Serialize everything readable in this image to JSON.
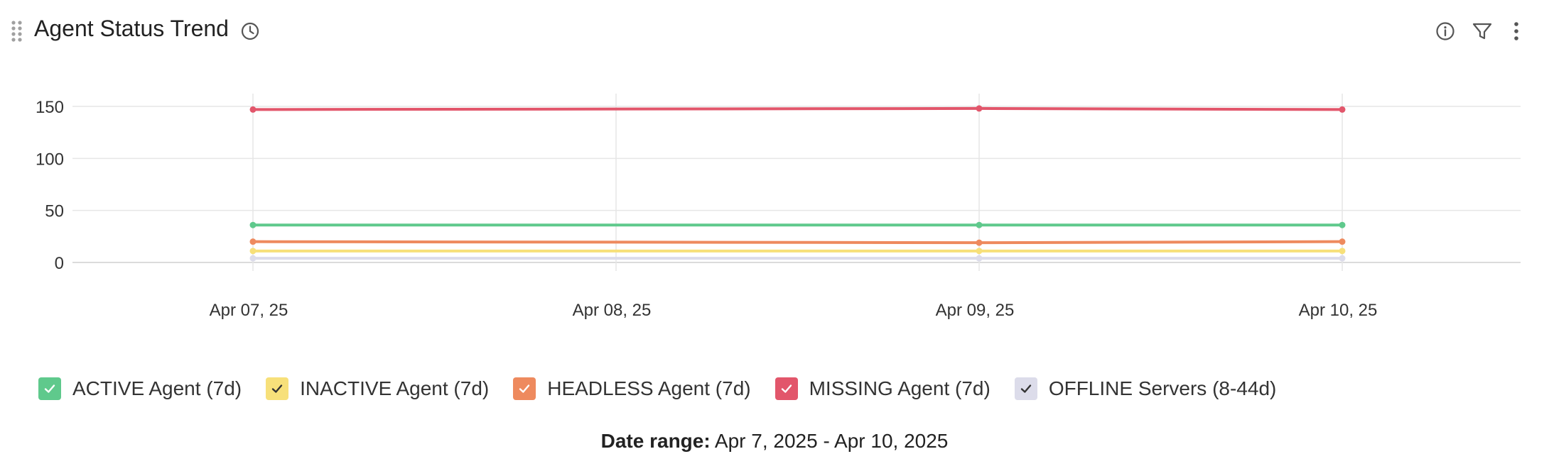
{
  "header": {
    "title": "Agent Status Trend",
    "icons": [
      "drag-handle-icon",
      "clock-icon",
      "info-icon",
      "filter-icon",
      "more-vertical-icon"
    ]
  },
  "chart_data": {
    "type": "line",
    "x": [
      "Apr 07, 25",
      "Apr 08, 25",
      "Apr 09, 25",
      "Apr 10, 25"
    ],
    "ylim": [
      0,
      160
    ],
    "yticks": [
      0,
      50,
      100,
      150
    ],
    "grid": true,
    "legend_placement": "bottom",
    "series": [
      {
        "name": "ACTIVE Agent (7d)",
        "color": "#5fc98c",
        "values": [
          36,
          null,
          36,
          36
        ]
      },
      {
        "name": "INACTIVE Agent (7d)",
        "color": "#f7e07a",
        "values": [
          11,
          null,
          11,
          11
        ]
      },
      {
        "name": "HEADLESS Agent (7d)",
        "color": "#ee8a5e",
        "values": [
          20,
          null,
          19,
          20
        ]
      },
      {
        "name": "MISSING Agent (7d)",
        "color": "#e2566b",
        "values": [
          147,
          null,
          148,
          147
        ]
      },
      {
        "name": "OFFLINE Servers (8-44d)",
        "color": "#dcdcea",
        "values": [
          4,
          null,
          4,
          4
        ]
      }
    ]
  },
  "footer": {
    "date_range_label": "Date range:",
    "date_range_value": "Apr 7, 2025 - Apr 10, 2025"
  }
}
